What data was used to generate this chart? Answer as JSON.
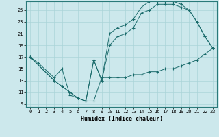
{
  "xlabel": "Humidex (Indice chaleur)",
  "bg_color": "#cce8ec",
  "grid_color": "#aad4d8",
  "line_color": "#1a6b6b",
  "xlim": [
    -0.5,
    23.5
  ],
  "ylim": [
    8.5,
    26.5
  ],
  "xticks": [
    0,
    1,
    2,
    3,
    4,
    5,
    6,
    7,
    8,
    9,
    10,
    11,
    12,
    13,
    14,
    15,
    16,
    17,
    18,
    19,
    20,
    21,
    22,
    23
  ],
  "yticks": [
    9,
    11,
    13,
    15,
    17,
    19,
    21,
    23,
    25
  ],
  "line1_x": [
    0,
    1,
    3,
    4,
    5,
    6,
    7,
    8,
    9,
    10,
    11,
    12,
    13,
    14,
    15,
    16,
    17,
    18,
    19,
    20,
    21,
    22,
    23
  ],
  "line1_y": [
    17,
    16,
    13.5,
    15,
    10.5,
    10,
    9.5,
    9.5,
    13.5,
    13.5,
    13.5,
    13.5,
    14,
    14,
    14.5,
    14.5,
    15,
    15,
    15.5,
    16,
    16.5,
    17.5,
    18.5
  ],
  "line2_x": [
    0,
    3,
    4,
    5,
    6,
    7,
    8,
    9,
    10,
    11,
    12,
    13,
    14,
    15,
    16,
    17,
    18,
    19,
    20,
    21,
    22,
    23
  ],
  "line2_y": [
    17,
    13,
    12,
    11,
    10,
    9.5,
    16.5,
    13,
    19,
    20.5,
    21,
    22,
    24.5,
    25,
    26,
    26,
    26,
    25.5,
    25,
    23,
    20.5,
    18.5
  ],
  "line3_x": [
    0,
    3,
    4,
    5,
    6,
    7,
    8,
    9,
    10,
    11,
    12,
    13,
    14,
    15,
    16,
    17,
    18,
    19,
    20,
    21,
    22,
    23
  ],
  "line3_y": [
    17,
    13,
    12,
    11,
    10,
    9.5,
    16.5,
    13,
    21,
    22,
    22.5,
    23.5,
    25.5,
    26.5,
    26.5,
    26.5,
    26.5,
    26,
    25,
    23,
    20.5,
    18.5
  ]
}
